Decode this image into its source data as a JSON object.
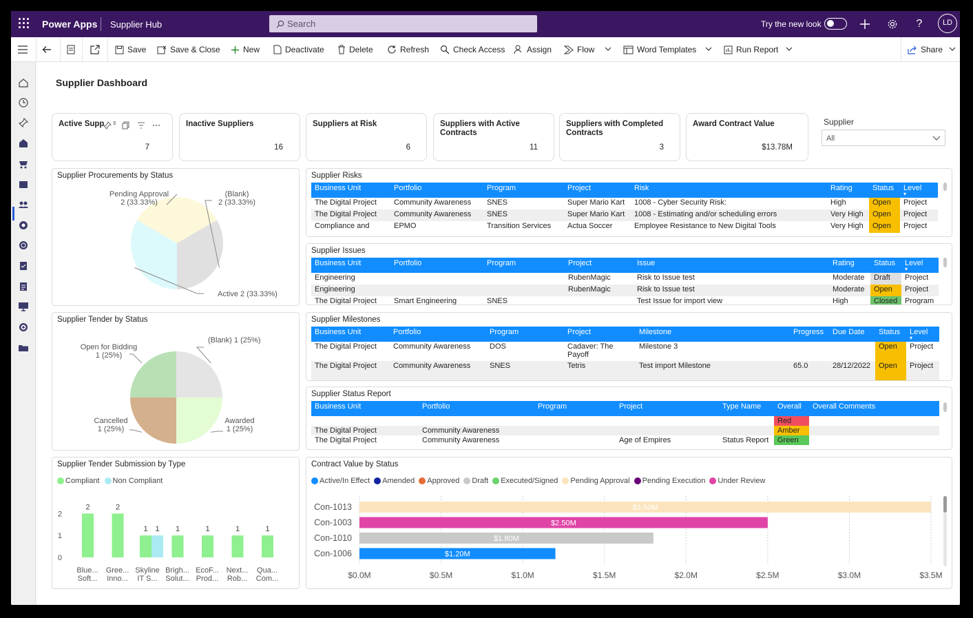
{
  "topbar": {
    "app_name": "Power Apps",
    "environment": "Supplier Hub",
    "search_placeholder": "Search",
    "try_new_look": "Try the new look",
    "avatar_initials": "LD"
  },
  "commands": {
    "save": "Save",
    "save_close": "Save & Close",
    "new": "New",
    "deactivate": "Deactivate",
    "delete": "Delete",
    "refresh": "Refresh",
    "check_access": "Check Access",
    "assign": "Assign",
    "flow": "Flow",
    "word_templates": "Word Templates",
    "run_report": "Run Report",
    "share": "Share"
  },
  "dashboard": {
    "title": "Supplier Dashboard"
  },
  "kpis": [
    {
      "label": "Active Supp",
      "value": "7"
    },
    {
      "label": "Inactive Suppliers",
      "value": "16"
    },
    {
      "label": "Suppliers at Risk",
      "value": "6"
    },
    {
      "label": "Suppliers with Active\nContracts",
      "value": "11"
    },
    {
      "label": "Suppliers with Completed\nContracts",
      "value": "3"
    },
    {
      "label": "Award Contract Value",
      "value": "$13.78M"
    }
  ],
  "kpi_hover_s": "s",
  "slicer": {
    "label": "Supplier",
    "value": "All"
  },
  "procurements": {
    "title": "Supplier Procurements by Status",
    "slices": [
      {
        "name": "Pending Approval",
        "label": "2 (33.33%)",
        "value": 2,
        "color": "#fcf8d9"
      },
      {
        "name": "(Blank)",
        "label": "2 (33.33%)",
        "value": 2,
        "color": "#e0e0e0"
      },
      {
        "name": "Active",
        "label": "2 (33.33%)",
        "value": 2,
        "color": "#dcf9fb"
      }
    ]
  },
  "tender": {
    "title": "Supplier Tender by Status",
    "slices": [
      {
        "name": "(Blank)",
        "label": "1 (25%)",
        "value": 1,
        "color": "#e4e4e4"
      },
      {
        "name": "Awarded",
        "label": "1 (25%)",
        "value": 1,
        "color": "#e4fcd4"
      },
      {
        "name": "Cancelled",
        "label": "1 (25%)",
        "value": 1,
        "color": "#d4b08c"
      },
      {
        "name": "Open for Bidding",
        "label": "1 (25%)",
        "value": 1,
        "color": "#b8e0b4"
      }
    ]
  },
  "risks": {
    "title": "Supplier Risks",
    "columns": [
      "Business Unit",
      "Portfolio",
      "Program",
      "Project",
      "Risk",
      "Rating",
      "Status",
      "Level"
    ],
    "rows": [
      [
        "The Digital Project",
        "Community Awareness",
        "SNES",
        "Super Mario Kart",
        "1008 - Cyber Security Risk:",
        "High",
        "Open",
        "Project"
      ],
      [
        "The Digital Project",
        "Community Awareness",
        "SNES",
        "Super Mario Kart",
        "1008 - Estimating and/or scheduling errors",
        "Very High",
        "Open",
        "Project"
      ],
      [
        "Compliance and",
        "EPMO",
        "Transition Services",
        "Actua Soccer",
        "Employee Resistance to New Digital Tools",
        "Very High",
        "Open",
        "Project"
      ]
    ]
  },
  "issues": {
    "title": "Supplier Issues",
    "columns": [
      "Business Unit",
      "Portfolio",
      "Program",
      "Project",
      "Issue",
      "Rating",
      "Status",
      "Level"
    ],
    "rows": [
      [
        "Engineering",
        "",
        "",
        "RubenMagic",
        "Risk to Issue test",
        "Moderate",
        "Draft",
        "Project"
      ],
      [
        "Engineering",
        "",
        "",
        "RubenMagic",
        "Risk to Issue test",
        "Moderate",
        "Open",
        "Project"
      ],
      [
        "The Digital Project",
        "Smart Engineering",
        "SNES",
        "",
        "Test Issue for import view",
        "High",
        "Closed",
        "Program"
      ]
    ]
  },
  "milestones": {
    "title": "Supplier Milestones",
    "columns": [
      "Business Unit",
      "Portfolio",
      "Program",
      "Project",
      "Milestone",
      "Progress",
      "Due Date",
      "Status",
      "Level"
    ],
    "rows": [
      [
        "The Digital Project",
        "Community Awareness",
        "DOS",
        "Cadaver: The Payoff",
        "Milestone 3",
        "",
        "",
        "Open",
        "Project"
      ],
      [
        "The Digital Project",
        "Community Awareness",
        "SNES",
        "Tetris",
        "Test import Milestone",
        "65.0",
        "28/12/2022",
        "Open",
        "Project"
      ]
    ]
  },
  "status_report": {
    "title": "Supplier Status Report",
    "columns": [
      "Business Unit",
      "Portfolio",
      "Program",
      "Project",
      "Type Name",
      "Overall",
      "Overall Comments"
    ],
    "rows": [
      [
        "",
        "",
        "",
        "",
        "",
        "Red",
        ""
      ],
      [
        "The Digital Project",
        "Community Awareness",
        "",
        "",
        "",
        "Amber",
        ""
      ],
      [
        "The Digital Project",
        "Community Awareness",
        "",
        "Age of Empires",
        "Status Report",
        "Green",
        ""
      ]
    ]
  },
  "submission": {
    "title": "Supplier Tender Submission by Type",
    "legend": [
      {
        "name": "Compliant",
        "color": "#8ef08e"
      },
      {
        "name": "Non Compliant",
        "color": "#aaeaf2"
      }
    ],
    "y_ticks": [
      "2",
      "1",
      "0"
    ]
  },
  "contract": {
    "title": "Contract Value by Status",
    "legend": [
      {
        "name": "Active/In Effect",
        "color": "#118dff"
      },
      {
        "name": "Amended",
        "color": "#12239e"
      },
      {
        "name": "Approved",
        "color": "#e66c37"
      },
      {
        "name": "Draft",
        "color": "#c9c9c9"
      },
      {
        "name": "Executed/Signed",
        "color": "#6bd36b"
      },
      {
        "name": "Pending Approval",
        "color": "#fbe4bd"
      },
      {
        "name": "Pending Execution",
        "color": "#6b007b"
      },
      {
        "name": "Under Review",
        "color": "#e044a7"
      }
    ]
  },
  "chart_data": [
    {
      "type": "bar",
      "title": "Supplier Tender Submission by Type",
      "categories": [
        "Blue... Soft...",
        "Gree... Inno...",
        "Skyline IT S...",
        "Brigh... Solut...",
        "EcoF... Prod...",
        "Next... Rob...",
        "Qua... Com..."
      ],
      "series": [
        {
          "name": "Compliant",
          "values": [
            2,
            2,
            1,
            1,
            1,
            1,
            1
          ]
        },
        {
          "name": "Non Compliant",
          "values": [
            0,
            0,
            1,
            0,
            0,
            0,
            0
          ]
        }
      ],
      "ylim": [
        0,
        2.5
      ],
      "legend": "top-left"
    },
    {
      "type": "bar",
      "title": "Contract Value by Status",
      "orientation": "horizontal",
      "categories": [
        "Con-1013",
        "Con-1003",
        "Con-1010",
        "Con-1006"
      ],
      "values": [
        3.5,
        2.5,
        1.8,
        1.2
      ],
      "labels": [
        "$3.50M",
        "$2.50M",
        "$1.80M",
        "$1.20M"
      ],
      "statuses": [
        "Pending Approval",
        "Under Review",
        "Draft",
        "Active/In Effect"
      ],
      "x_ticks": [
        "$0.0M",
        "$0.5M",
        "$1.0M",
        "$1.5M",
        "$2.0M",
        "$2.5M",
        "$3.0M",
        "$3.5M"
      ],
      "xlim": [
        0,
        3.5
      ],
      "legend": "top"
    }
  ]
}
